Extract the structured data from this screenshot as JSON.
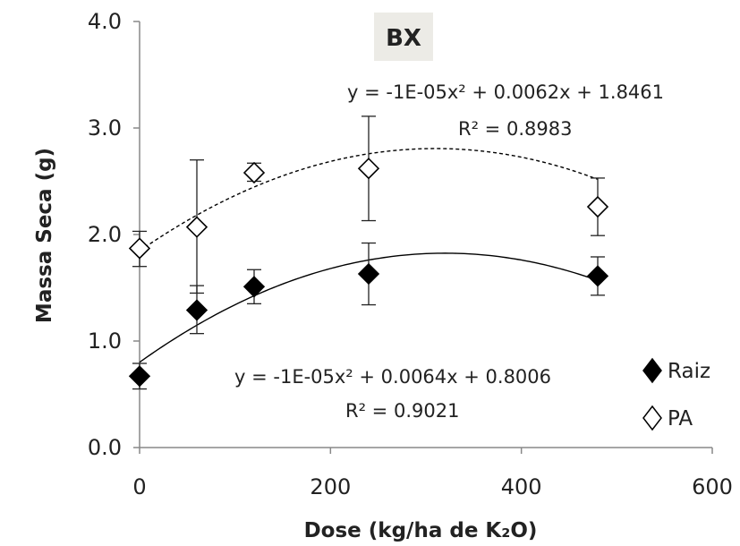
{
  "chart_data": {
    "type": "scatter",
    "title": "BX",
    "xlabel": "Dose (kg/ha de K₂O)",
    "ylabel": "Massa Seca (g)",
    "xlim": [
      0,
      600
    ],
    "ylim": [
      0.0,
      4.0
    ],
    "xticks": [
      "0",
      "200",
      "400",
      "600"
    ],
    "yticks": [
      "0.0",
      "1.0",
      "2.0",
      "3.0",
      "4.0"
    ],
    "grid": false,
    "legend_position": "bottom-right",
    "series": [
      {
        "name": "Raiz",
        "marker": "filled-diamond",
        "color": "#000000",
        "x": [
          0,
          60,
          120,
          240,
          480
        ],
        "y": [
          0.67,
          1.29,
          1.51,
          1.63,
          1.61
        ],
        "error_low": [
          0.55,
          1.07,
          1.35,
          1.34,
          1.43
        ],
        "error_high": [
          0.79,
          1.52,
          1.67,
          1.92,
          1.79
        ],
        "fit": {
          "a": -1e-05,
          "b": 0.0064,
          "c": 0.8006,
          "style": "solid",
          "range": [
            0,
            480
          ]
        },
        "equation": "y = -1E-05x² + 0.0064x + 0.8006",
        "r2": "R² = 0.9021"
      },
      {
        "name": "PA",
        "marker": "open-diamond",
        "color": "#000000",
        "x": [
          0,
          60,
          120,
          240,
          480
        ],
        "y": [
          1.87,
          2.07,
          2.58,
          2.62,
          2.26
        ],
        "error_low": [
          1.7,
          1.45,
          2.5,
          2.13,
          1.99
        ],
        "error_high": [
          2.03,
          2.7,
          2.67,
          3.11,
          2.53
        ],
        "fit": {
          "a": -1e-05,
          "b": 0.0062,
          "c": 1.8461,
          "style": "dashed",
          "range": [
            0,
            480
          ]
        },
        "equation": "y = -1E-05x² + 0.0062x + 1.8461",
        "r2": "R² = 0.8983"
      }
    ]
  }
}
